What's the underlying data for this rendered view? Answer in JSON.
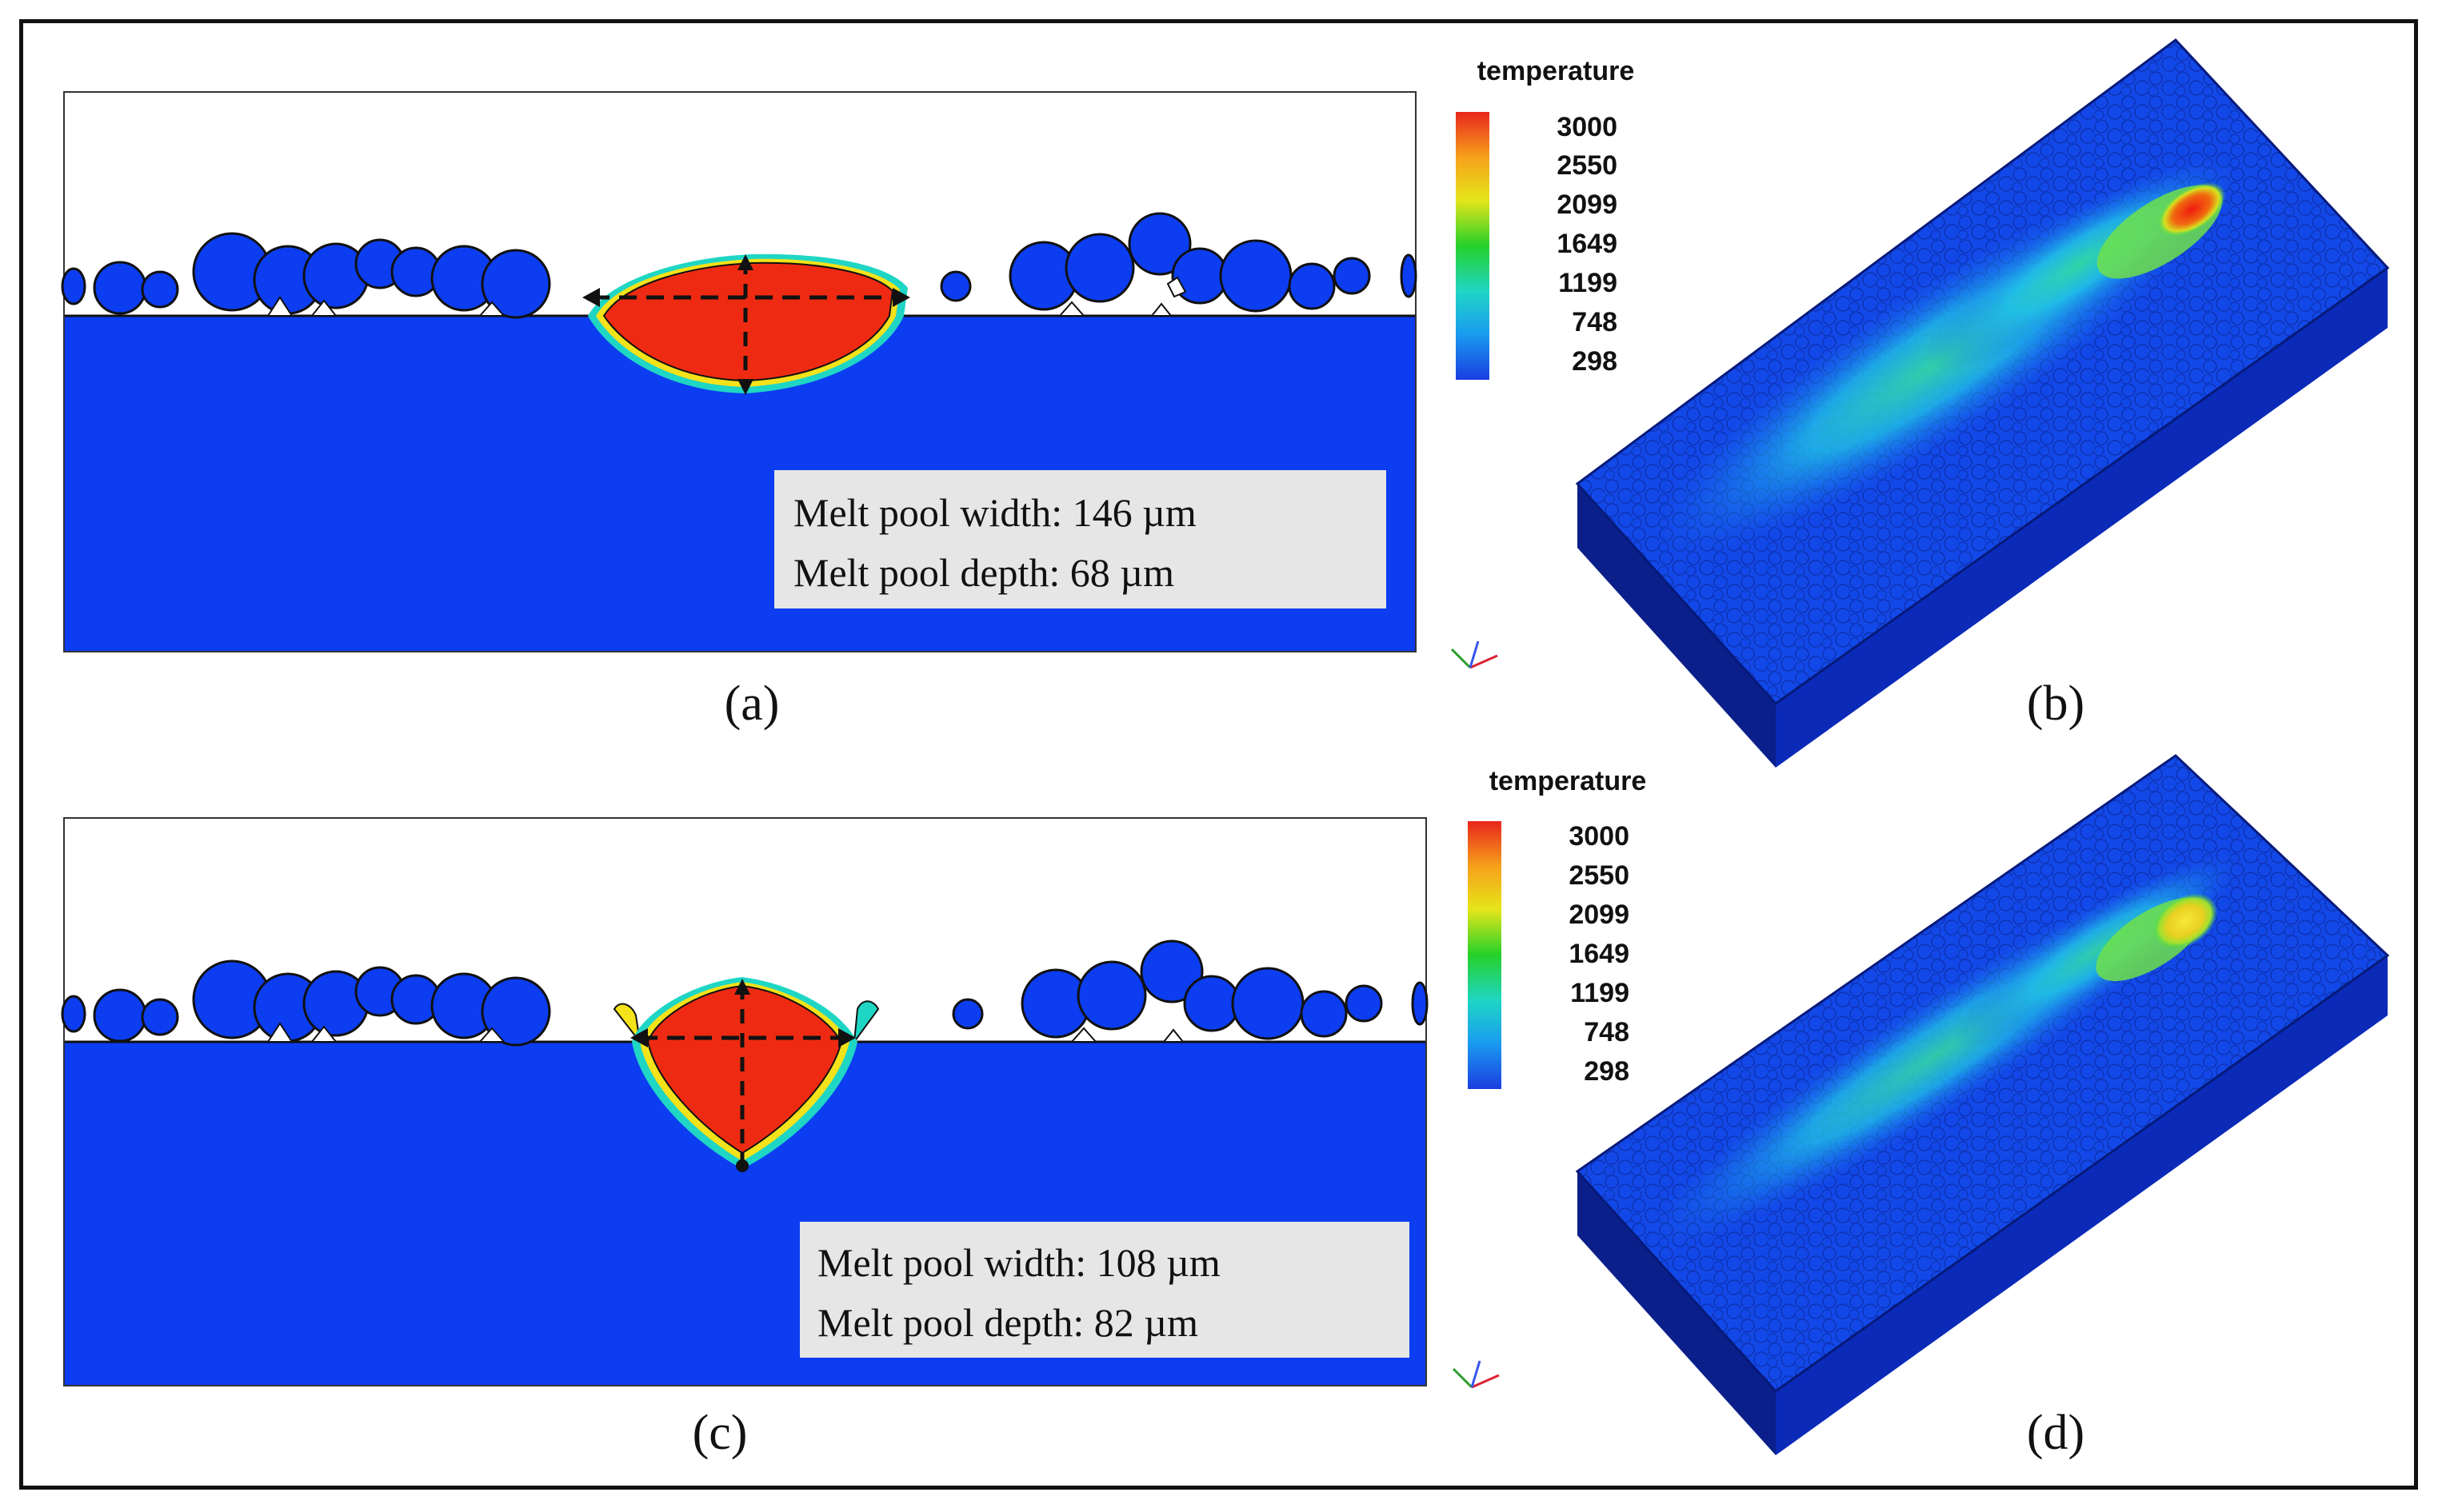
{
  "panels": {
    "a": {
      "label": "(a)",
      "width_text": "Melt pool width: 146 µm",
      "depth_text": "Melt pool depth: 68 µm"
    },
    "b": {
      "label": "(b)"
    },
    "c": {
      "label": "(c)",
      "width_text": "Melt pool width: 108 µm",
      "depth_text": "Melt pool depth: 82 µm"
    },
    "d": {
      "label": "(d)"
    }
  },
  "colorbar": {
    "title": "temperature",
    "ticks": [
      "3000",
      "2550",
      "2099",
      "1649",
      "1199",
      "748",
      "298"
    ],
    "colors": [
      "#e8261c",
      "#f7a21b",
      "#e5e51a",
      "#25d12a",
      "#1fd6c4",
      "#1a9bf0",
      "#1a3ee0"
    ]
  },
  "colors": {
    "substrate": "#0c3df0",
    "melt": "#ee2b12",
    "panel_bg": "#ffffff",
    "label_box": "#e6e6e6"
  }
}
